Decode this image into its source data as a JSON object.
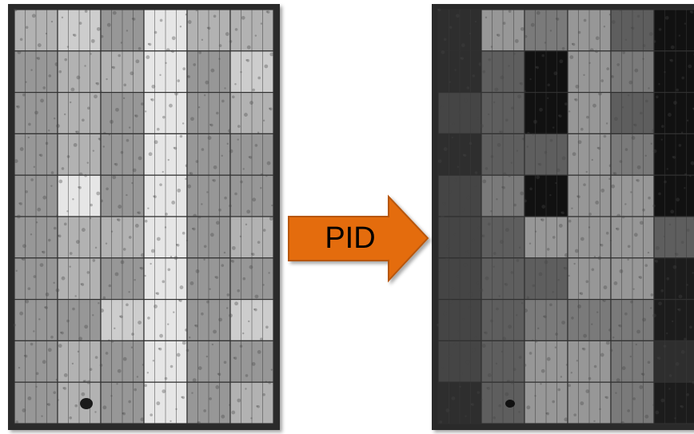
{
  "arrow": {
    "label": "PID"
  }
}
